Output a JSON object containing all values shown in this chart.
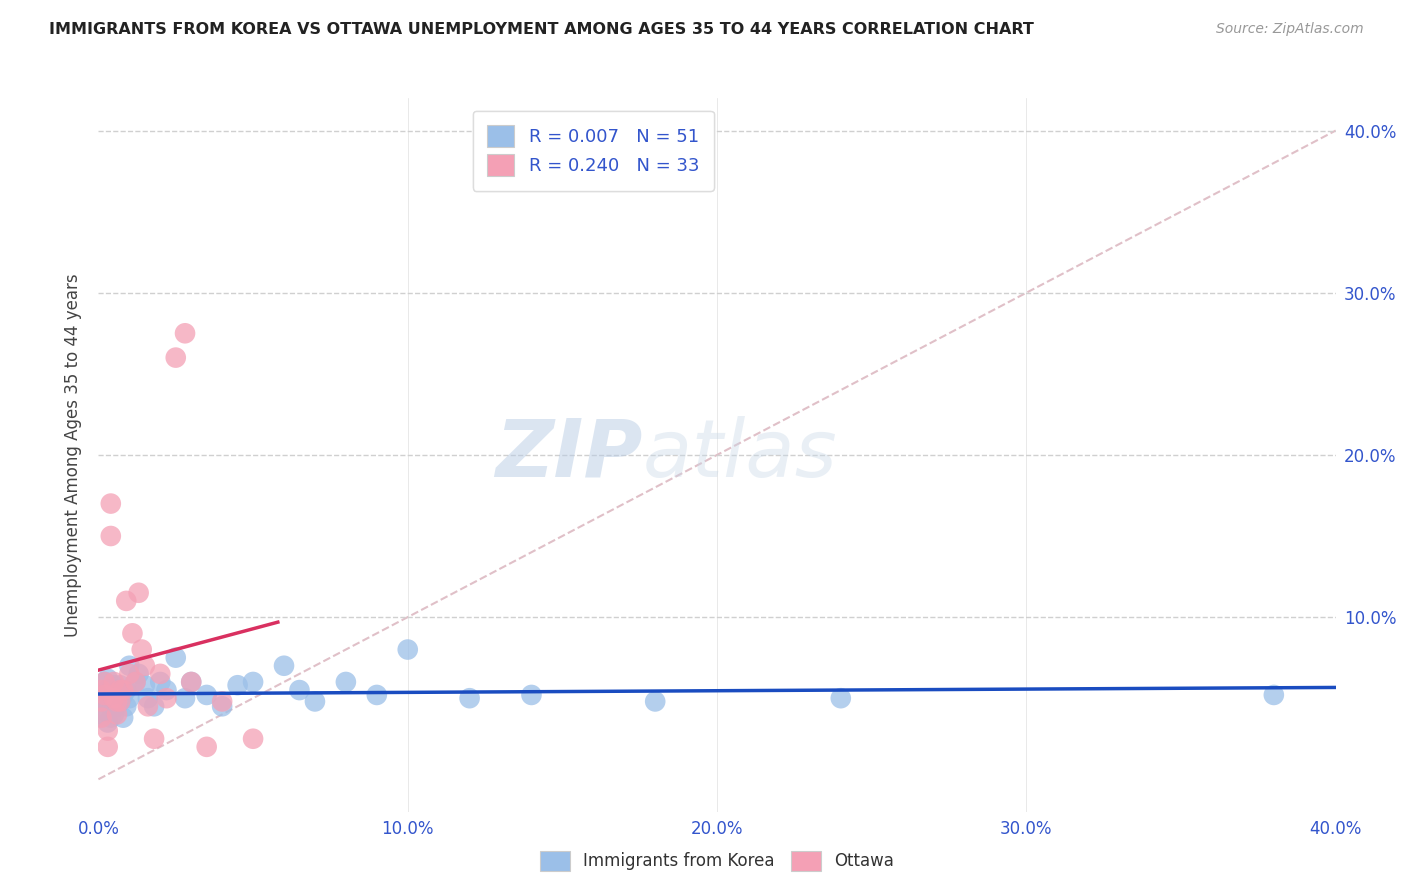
{
  "title": "IMMIGRANTS FROM KOREA VS OTTAWA UNEMPLOYMENT AMONG AGES 35 TO 44 YEARS CORRELATION CHART",
  "source": "Source: ZipAtlas.com",
  "ylabel": "Unemployment Among Ages 35 to 44 years",
  "xlim": [
    0,
    0.4
  ],
  "ylim": [
    -0.02,
    0.42
  ],
  "korea_R": 0.007,
  "korea_N": 51,
  "ottawa_R": 0.24,
  "ottawa_N": 33,
  "korea_color": "#9BBFE8",
  "ottawa_color": "#F4A0B5",
  "korea_line_color": "#1A4CC0",
  "ottawa_line_color": "#D93060",
  "diagonal_color": "#E0C0C8",
  "grid_color": "#D0D0D0",
  "legend_korea_label": "Immigrants from Korea",
  "legend_ottawa_label": "Ottawa",
  "watermark_zip": "ZIP",
  "watermark_atlas": "atlas",
  "background_color": "#ffffff",
  "korea_x": [
    0.001,
    0.001,
    0.001,
    0.002,
    0.002,
    0.002,
    0.003,
    0.003,
    0.003,
    0.003,
    0.004,
    0.004,
    0.004,
    0.005,
    0.005,
    0.005,
    0.006,
    0.006,
    0.007,
    0.007,
    0.008,
    0.008,
    0.009,
    0.009,
    0.01,
    0.01,
    0.012,
    0.013,
    0.015,
    0.016,
    0.018,
    0.02,
    0.022,
    0.025,
    0.028,
    0.03,
    0.035,
    0.04,
    0.045,
    0.05,
    0.06,
    0.065,
    0.07,
    0.08,
    0.09,
    0.1,
    0.12,
    0.14,
    0.18,
    0.24,
    0.38
  ],
  "korea_y": [
    0.055,
    0.048,
    0.04,
    0.06,
    0.05,
    0.042,
    0.055,
    0.048,
    0.062,
    0.035,
    0.052,
    0.045,
    0.038,
    0.058,
    0.048,
    0.04,
    0.055,
    0.045,
    0.058,
    0.048,
    0.052,
    0.038,
    0.055,
    0.045,
    0.07,
    0.05,
    0.06,
    0.065,
    0.058,
    0.05,
    0.045,
    0.06,
    0.055,
    0.075,
    0.05,
    0.06,
    0.052,
    0.045,
    0.058,
    0.06,
    0.07,
    0.055,
    0.048,
    0.06,
    0.052,
    0.08,
    0.05,
    0.052,
    0.048,
    0.05,
    0.052
  ],
  "ottawa_x": [
    0.001,
    0.001,
    0.001,
    0.002,
    0.002,
    0.003,
    0.003,
    0.004,
    0.004,
    0.005,
    0.005,
    0.006,
    0.006,
    0.007,
    0.007,
    0.008,
    0.009,
    0.01,
    0.011,
    0.012,
    0.013,
    0.014,
    0.015,
    0.016,
    0.018,
    0.02,
    0.022,
    0.025,
    0.028,
    0.03,
    0.035,
    0.04,
    0.05
  ],
  "ottawa_y": [
    0.055,
    0.048,
    0.038,
    0.06,
    0.052,
    0.03,
    0.02,
    0.17,
    0.15,
    0.06,
    0.05,
    0.048,
    0.04,
    0.055,
    0.048,
    0.055,
    0.11,
    0.065,
    0.09,
    0.06,
    0.115,
    0.08,
    0.07,
    0.045,
    0.025,
    0.065,
    0.05,
    0.26,
    0.275,
    0.06,
    0.02,
    0.048,
    0.025
  ]
}
